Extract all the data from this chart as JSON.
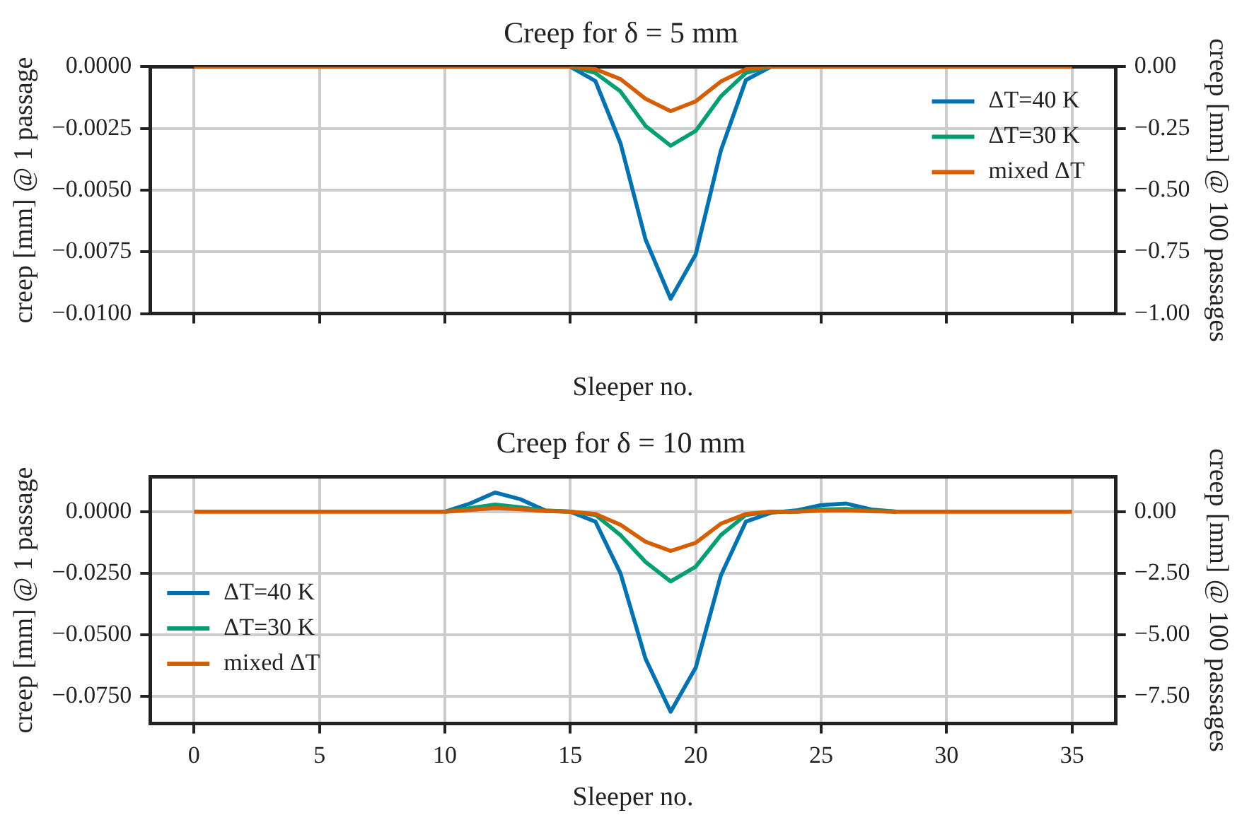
{
  "chart_data": [
    {
      "type": "line",
      "title": "Creep for δ = 5 mm",
      "xlabel": "Sleeper no.",
      "ylabel": "creep [mm] @ 1 passage",
      "y2label": "creep [mm] @ 100 passages",
      "x": [
        0,
        1,
        2,
        3,
        4,
        5,
        6,
        7,
        8,
        9,
        10,
        11,
        12,
        13,
        14,
        15,
        16,
        17,
        18,
        19,
        20,
        21,
        22,
        23,
        24,
        25,
        26,
        27,
        28,
        29,
        30,
        31,
        32,
        33,
        34,
        35
      ],
      "series": [
        {
          "name": "ΔT=40 K",
          "color": "#0072b2",
          "values": [
            null,
            null,
            null,
            null,
            null,
            null,
            null,
            null,
            null,
            null,
            null,
            null,
            null,
            null,
            null,
            0,
            -0.00058,
            -0.0031,
            -0.007,
            -0.0094,
            -0.0076,
            -0.0034,
            -0.00054,
            0,
            null,
            null,
            null,
            null,
            null,
            null,
            null,
            null,
            null,
            null,
            null,
            null
          ]
        },
        {
          "name": "ΔT=30 K",
          "color": "#009e73",
          "values": [
            null,
            null,
            null,
            null,
            null,
            null,
            null,
            null,
            null,
            null,
            null,
            null,
            null,
            null,
            null,
            0,
            -0.00025,
            -0.001,
            -0.0024,
            -0.0032,
            -0.0026,
            -0.0012,
            -0.00025,
            0,
            null,
            null,
            null,
            null,
            null,
            null,
            null,
            null,
            null,
            null,
            null,
            null
          ]
        },
        {
          "name": "mixed ΔT",
          "color": "#d55e00",
          "values": [
            0,
            0,
            0,
            0,
            0,
            0,
            0,
            0,
            0,
            0,
            0,
            0,
            0,
            0,
            0,
            0,
            -0.0001,
            -0.0005,
            -0.0013,
            -0.0018,
            -0.0014,
            -0.0006,
            -0.0001,
            0,
            0,
            0,
            0,
            0,
            0,
            0,
            0,
            0,
            0,
            0,
            0,
            0
          ]
        }
      ],
      "xlim": [
        -1.75,
        36.75
      ],
      "xticks": [
        {
          "value": 0,
          "label": null
        },
        {
          "value": 5,
          "label": null
        },
        {
          "value": 10,
          "label": null
        },
        {
          "value": 15,
          "label": null
        },
        {
          "value": 20,
          "label": null
        },
        {
          "value": 25,
          "label": null
        },
        {
          "value": 30,
          "label": null
        },
        {
          "value": 35,
          "label": null
        }
      ],
      "ylim": [
        -0.01,
        0
      ],
      "yticks": [
        {
          "value": 0,
          "label": "0.0000"
        },
        {
          "value": -0.0025,
          "label": "−0.0025"
        },
        {
          "value": -0.005,
          "label": "−0.0050"
        },
        {
          "value": -0.0075,
          "label": "−0.0075"
        },
        {
          "value": -0.01,
          "label": "−0.0100"
        }
      ],
      "y2lim": [
        -1,
        0
      ],
      "y2ticks": [
        {
          "value": 0,
          "label": "0.00"
        },
        {
          "value": -0.25,
          "label": "−0.25"
        },
        {
          "value": -0.5,
          "label": "−0.50"
        },
        {
          "value": -0.75,
          "label": "−0.75"
        },
        {
          "value": -1,
          "label": "−1.00"
        }
      ],
      "tick_labels": "y",
      "grid": true,
      "legend": "top right",
      "marker": "none",
      "line_style": "solid"
    },
    {
      "type": "line",
      "title": "Creep for δ = 10 mm",
      "xlabel": "Sleeper no.",
      "ylabel": "creep [mm] @ 1 passage",
      "y2label": "creep [mm] @ 100 passages",
      "x": [
        0,
        1,
        2,
        3,
        4,
        5,
        6,
        7,
        8,
        9,
        10,
        11,
        12,
        13,
        14,
        15,
        16,
        17,
        18,
        19,
        20,
        21,
        22,
        23,
        24,
        25,
        26,
        27,
        28,
        29,
        30,
        31,
        32,
        33,
        34,
        35
      ],
      "series": [
        {
          "name": "ΔT=40 K",
          "color": "#0072b2",
          "values": [
            null,
            null,
            null,
            null,
            null,
            null,
            null,
            null,
            null,
            null,
            0,
            0.0033,
            0.0078,
            0.0051,
            0.0005,
            0,
            -0.004,
            -0.025,
            -0.0597,
            -0.0812,
            -0.0633,
            -0.0259,
            -0.004,
            -0.0004,
            0.0005,
            0.0027,
            0.0033,
            0.0009,
            0,
            null,
            null,
            null,
            null,
            null,
            null,
            null
          ]
        },
        {
          "name": "ΔT=30 K",
          "color": "#009e73",
          "values": [
            null,
            null,
            null,
            null,
            null,
            null,
            null,
            null,
            null,
            null,
            0,
            0.0015,
            0.0029,
            0.0018,
            0.0004,
            0,
            -0.0013,
            -0.0095,
            -0.0204,
            -0.0283,
            -0.0223,
            -0.0095,
            -0.0013,
            0,
            0,
            0.0009,
            0.0011,
            0.0004,
            0,
            null,
            null,
            null,
            null,
            null,
            null,
            null
          ]
        },
        {
          "name": "mixed ΔT",
          "color": "#d55e00",
          "values": [
            0,
            0,
            0,
            0,
            0,
            0,
            0,
            0,
            0,
            0,
            0,
            0.0007,
            0.0015,
            0.001,
            0.0003,
            0,
            -0.0009,
            -0.0053,
            -0.0122,
            -0.0159,
            -0.0126,
            -0.0049,
            -0.0009,
            0,
            0,
            0.0005,
            0.0006,
            0.0002,
            0,
            0,
            0,
            0,
            0,
            0,
            0,
            0
          ]
        }
      ],
      "xlim": [
        -1.75,
        36.75
      ],
      "xticks": [
        0,
        5,
        10,
        15,
        20,
        25,
        30,
        35
      ],
      "ylim": [
        -0.086,
        0.0142
      ],
      "yticks": [
        {
          "value": 0,
          "label": "0.0000"
        },
        {
          "value": -0.025,
          "label": "−0.0250"
        },
        {
          "value": -0.05,
          "label": "−0.0500"
        },
        {
          "value": -0.075,
          "label": "−0.0750"
        }
      ],
      "y2lim": [
        -8.6,
        1.42
      ],
      "y2ticks": [
        {
          "value": 0,
          "label": "0.00"
        },
        {
          "value": -2.5,
          "label": "−2.50"
        },
        {
          "value": -5,
          "label": "−5.00"
        },
        {
          "value": -7.5,
          "label": "−7.50"
        }
      ],
      "grid": true,
      "legend": "center left",
      "marker": "none",
      "line_style": "solid"
    }
  ]
}
